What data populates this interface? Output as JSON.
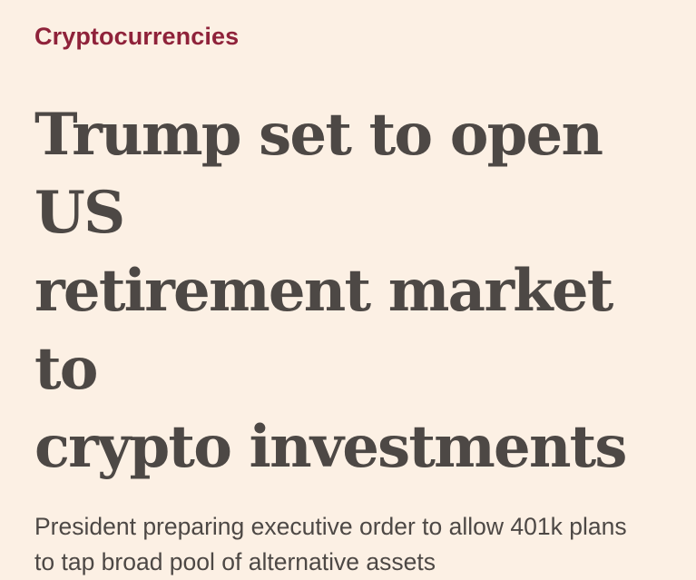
{
  "article": {
    "topic": "Cryptocurrencies",
    "headline_lines": [
      "Trump set to open US",
      "retirement market to",
      "crypto investments"
    ],
    "standfirst_lines": [
      "President preparing executive order to allow 401k plans",
      "to tap broad pool of alternative assets"
    ]
  },
  "colors": {
    "background": "#FCF0E4",
    "topic": "#8F223A",
    "text": "#4D4845"
  }
}
